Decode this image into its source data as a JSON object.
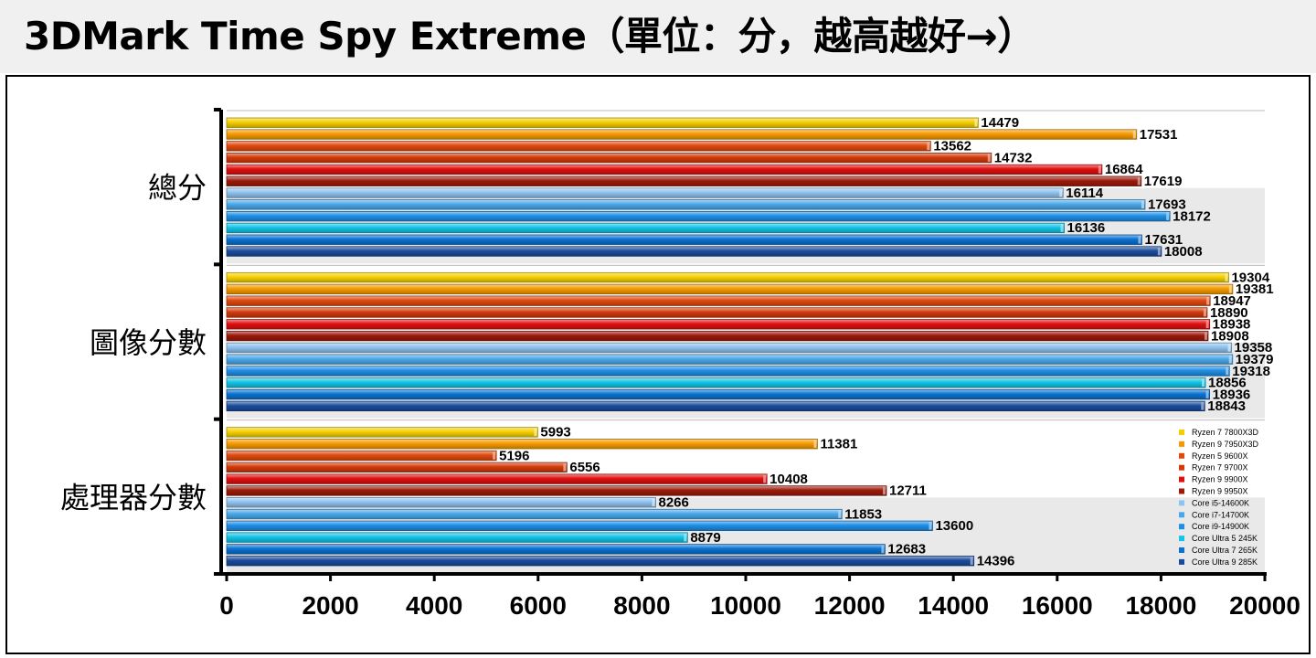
{
  "title": "3DMark Time Spy Extreme（單位：分，越高越好→）",
  "chart_data": {
    "type": "bar",
    "orientation": "horizontal",
    "title": "3DMark Time Spy Extreme（單位：分，越高越好→）",
    "categories": [
      "總分",
      "圖像分數",
      "處理器分數"
    ],
    "xlim": [
      0,
      20000
    ],
    "xticks": [
      0,
      2000,
      4000,
      6000,
      8000,
      10000,
      12000,
      14000,
      16000,
      18000,
      20000
    ],
    "legend_position": "right",
    "series": [
      {
        "name": "Ryzen 7 7800X3D",
        "color": "#f5d000",
        "values": [
          14479,
          19304,
          5993
        ]
      },
      {
        "name": "Ryzen 9 7950X3D",
        "color": "#f59a00",
        "values": [
          17531,
          19381,
          11381
        ]
      },
      {
        "name": "Ryzen 5 9600X",
        "color": "#e04a10",
        "values": [
          13562,
          18947,
          5196
        ]
      },
      {
        "name": "Ryzen 7 9700X",
        "color": "#d23a0a",
        "values": [
          14732,
          18890,
          6556
        ]
      },
      {
        "name": "Ryzen 9 9900X",
        "color": "#e01010",
        "values": [
          16864,
          18938,
          10408
        ]
      },
      {
        "name": "Ryzen 9 9950X",
        "color": "#9c1a0a",
        "values": [
          17619,
          18908,
          12711
        ]
      },
      {
        "name": "Core i5-14600K",
        "color": "#8fc2ee",
        "values": [
          16114,
          19358,
          8266
        ]
      },
      {
        "name": "Core i7-14700K",
        "color": "#4aa8ea",
        "values": [
          17693,
          19379,
          11853
        ]
      },
      {
        "name": "Core i9-14900K",
        "color": "#1e8ee6",
        "values": [
          18172,
          19318,
          13600
        ]
      },
      {
        "name": "Core Ultra 5 245K",
        "color": "#12c4e6",
        "values": [
          16136,
          18856,
          8879
        ]
      },
      {
        "name": "Core Ultra 7 265K",
        "color": "#0a72d2",
        "values": [
          17631,
          18936,
          12683
        ]
      },
      {
        "name": "Core Ultra 9 285K",
        "color": "#1a4c9c",
        "values": [
          18008,
          18843,
          14396
        ]
      }
    ]
  }
}
